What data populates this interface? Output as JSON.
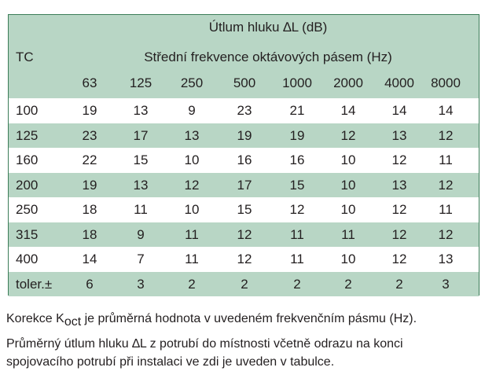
{
  "table": {
    "title": "Útlum hluku ∆L (dB)",
    "row_header": "TC",
    "subtitle": "Střední frekvence oktávových pásem (Hz)",
    "columns": [
      "63",
      "125",
      "250",
      "500",
      "1000",
      "2000",
      "4000",
      "8000"
    ],
    "rows": [
      {
        "tc": "100",
        "values": [
          "19",
          "13",
          "9",
          "23",
          "21",
          "14",
          "14",
          "14"
        ]
      },
      {
        "tc": "125",
        "values": [
          "23",
          "17",
          "13",
          "19",
          "19",
          "12",
          "13",
          "12"
        ]
      },
      {
        "tc": "160",
        "values": [
          "22",
          "15",
          "10",
          "16",
          "16",
          "10",
          "12",
          "11"
        ]
      },
      {
        "tc": "200",
        "values": [
          "19",
          "13",
          "12",
          "17",
          "15",
          "10",
          "13",
          "12"
        ]
      },
      {
        "tc": "250",
        "values": [
          "18",
          "11",
          "10",
          "15",
          "12",
          "10",
          "12",
          "11"
        ]
      },
      {
        "tc": "315",
        "values": [
          "18",
          "9",
          "11",
          "12",
          "11",
          "11",
          "12",
          "12"
        ]
      },
      {
        "tc": "400",
        "values": [
          "14",
          "7",
          "11",
          "12",
          "11",
          "10",
          "12",
          "13"
        ]
      },
      {
        "tc": "toler.±",
        "values": [
          "6",
          "3",
          "2",
          "2",
          "2",
          "2",
          "2",
          "3"
        ]
      }
    ]
  },
  "caption": {
    "line1_pre": "Korekce K",
    "line1_sub": "oct",
    "line1_post": " je průměrná hodnota v uvedeném frekvenčním pásmu (Hz).",
    "line2": "Průměrný útlum hluku ∆L z potrubí do místnosti včetně odrazu na konci",
    "line3": "spojovacího potrubí při instalaci ve zdi je uveden v tabulce."
  },
  "colors": {
    "header_bg": "#b8d6c5",
    "border": "#3b7d58"
  }
}
